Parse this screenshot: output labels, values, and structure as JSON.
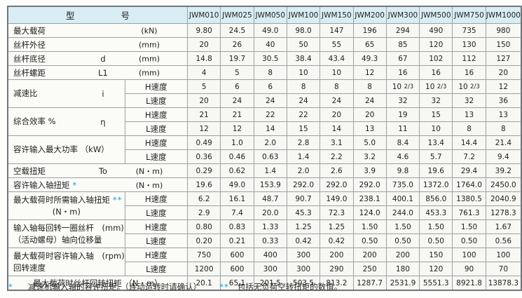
{
  "colors": {
    "header_bg": "#d9edf4",
    "accent_star": "#1a9cd8"
  },
  "table": {
    "corner_left": "型",
    "corner_right": "号",
    "speed_labels": [
      "H速度",
      "L速度"
    ],
    "columns": [
      "JWM010",
      "JWM025",
      "JWM050",
      "JWM100",
      "JWM150",
      "JWM200",
      "JWM300",
      "JWM500",
      "JWM750",
      "JWM1000"
    ],
    "rows": [
      {
        "kind": "single",
        "label": "最大载荷",
        "sym": "",
        "unit": "(kN)",
        "values": [
          "9.80",
          "24.5",
          "49.0",
          "98.0",
          "147",
          "196",
          "294",
          "490",
          "735",
          "980"
        ]
      },
      {
        "kind": "single",
        "label": "丝杆外径",
        "sym": "",
        "unit": "(mm)",
        "values": [
          "20",
          "26",
          "40",
          "50",
          "55",
          "65",
          "85",
          "120",
          "130",
          "150"
        ]
      },
      {
        "kind": "single",
        "label": "丝杆底径",
        "sym": "d",
        "unit": "(mm)",
        "values": [
          "14.8",
          "19.7",
          "30.5",
          "38.4",
          "43.4",
          "49.3",
          "67",
          "102",
          "112",
          "127"
        ]
      },
      {
        "kind": "single",
        "label": "丝杆螺距",
        "sym": "L1",
        "unit": "(mm)",
        "values": [
          "4",
          "5",
          "8",
          "10",
          "10",
          "12",
          "16",
          "16",
          "16",
          "20"
        ]
      },
      {
        "kind": "double",
        "label": "减速比",
        "sym": "i",
        "h": [
          "5",
          "6",
          "6",
          "8",
          "8",
          "8",
          "10 2/3",
          "10 2/3",
          "10 2/3",
          "12"
        ],
        "l": [
          "20",
          "24",
          "24",
          "24",
          "24",
          "24",
          "32",
          "32",
          "32",
          "36"
        ]
      },
      {
        "kind": "double",
        "label": "综合效率  %",
        "sym": "η",
        "h": [
          "21",
          "21",
          "22",
          "22",
          "20",
          "20",
          "19",
          "15",
          "13",
          "13"
        ],
        "l": [
          "12",
          "12",
          "14",
          "15",
          "14",
          "13",
          "11",
          "10",
          "8",
          "8"
        ]
      },
      {
        "kind": "double",
        "label": "容许输入最大功率 （kW）",
        "sym": "",
        "h": [
          "0.49",
          "1.0",
          "2.0",
          "2.8",
          "3.1",
          "5.0",
          "8.4",
          "13.4",
          "14.4",
          "21.4"
        ],
        "l": [
          "0.36",
          "0.46",
          "0.63",
          "1.4",
          "2.2",
          "3.2",
          "4.6",
          "5.7",
          "7.2",
          "9.4"
        ]
      },
      {
        "kind": "single",
        "label": "空载扭矩",
        "sym": "To",
        "unit": "(N・m)",
        "values": [
          "0.29",
          "0.62",
          "1.4",
          "2.0",
          "2.6",
          "3.9",
          "9.8",
          "19.6",
          "29.4",
          "39.2"
        ]
      },
      {
        "kind": "single",
        "label": "容许输入轴扭矩",
        "star": "*",
        "sym": "",
        "unit": "(N・m)",
        "values": [
          "19.6",
          "49.0",
          "153.9",
          "292.0",
          "292.0",
          "292.0",
          "735.0",
          "1372.0",
          "1764.0",
          "2450.0"
        ]
      },
      {
        "kind": "double",
        "label": "最大载荷时所需输入轴扭矩",
        "star": "**",
        "label2": "(N・m)",
        "center2": true,
        "sym": "",
        "h": [
          "6.2",
          "16.1",
          "48.7",
          "90.7",
          "149.0",
          "238.1",
          "400.1",
          "856.0",
          "1380.5",
          "2040.9"
        ],
        "l": [
          "2.9",
          "7.4",
          "20.0",
          "45.3",
          "72.3",
          "124.0",
          "244.0",
          "453.3",
          "761.3",
          "1278.3"
        ]
      },
      {
        "kind": "double",
        "label": "输入轴每回转一圈丝杆　(mm)",
        "label2": "（活动螺母）轴向位移量",
        "sym": "",
        "h": [
          "0.80",
          "0.83",
          "1.33",
          "1.25",
          "1.25",
          "1.50",
          "1.50",
          "1.50",
          "1.50",
          "1.67"
        ],
        "l": [
          "0.20",
          "0.21",
          "0.33",
          "0.42",
          "0.42",
          "0.50",
          "0.50",
          "0.50",
          "0.50",
          "0.56"
        ]
      },
      {
        "kind": "double",
        "label": "最大载荷时容许输入轴　(rpm)",
        "label2": "回转速度",
        "sym": "",
        "h": [
          "750",
          "600",
          "400",
          "300",
          "200",
          "200",
          "200",
          "150",
          "100",
          "100"
        ],
        "l": [
          "1200",
          "600",
          "300",
          "300",
          "290",
          "250",
          "180",
          "120",
          "90",
          "70"
        ]
      },
      {
        "kind": "wide",
        "label": "最大载荷时丝杆回转扭矩 （N・m）",
        "values": [
          "20.1",
          "65.1",
          "201.5",
          "503.5",
          "813.2",
          "1287.7",
          "2531.9",
          "5551.3",
          "8921.8",
          "13878.3"
        ]
      }
    ]
  },
  "footnotes": [
    {
      "star": "*",
      "text": "减速机输入轴的容许扭矩。（连动运转时请确认）"
    },
    {
      "star": "**",
      "text": "包括无负荷空转扭矩的数值。"
    }
  ]
}
